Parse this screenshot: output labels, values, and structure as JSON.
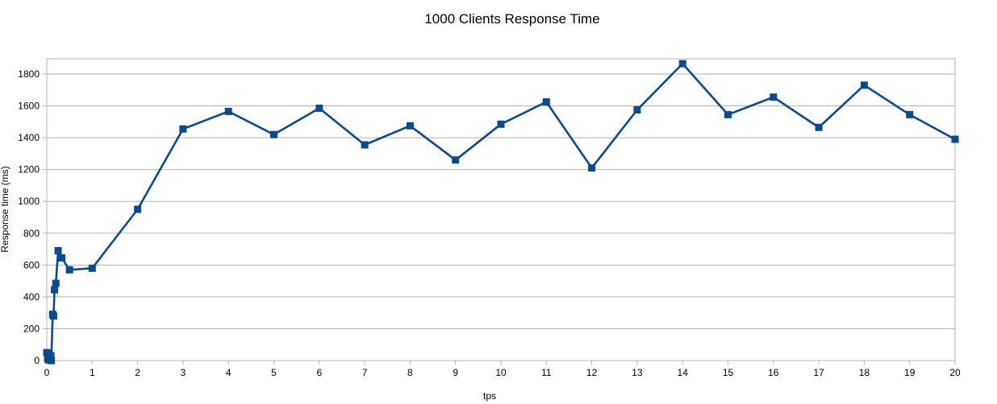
{
  "chart_data": {
    "type": "line",
    "title": "1000 Clients Response Time",
    "xlabel": "tps",
    "ylabel": "Response time (ms)",
    "xlim": [
      0,
      20
    ],
    "ylim": [
      0,
      1900
    ],
    "x_ticks": [
      0,
      1,
      2,
      3,
      4,
      5,
      6,
      7,
      8,
      9,
      10,
      11,
      12,
      13,
      14,
      15,
      16,
      17,
      18,
      19,
      20
    ],
    "y_ticks": [
      0,
      200,
      400,
      600,
      800,
      1000,
      1200,
      1400,
      1600,
      1800
    ],
    "x_tick_labels": [
      "0",
      "1",
      "2",
      "3",
      "4",
      "5",
      "6",
      "7",
      "8",
      "9",
      "10",
      "11",
      "12",
      "13",
      "14",
      "15",
      "16",
      "17",
      "18",
      "19",
      "20"
    ],
    "y_tick_labels": [
      "0",
      "200",
      "400",
      "600",
      "800",
      "1000",
      "1200",
      "1400",
      "1600",
      "1800"
    ],
    "grid": "horizontal",
    "legend": "none",
    "series": [
      {
        "color": "#0b4a8b",
        "marker": "square",
        "points": [
          [
            0.0,
            50
          ],
          [
            0.02,
            20
          ],
          [
            0.03,
            5
          ],
          [
            0.05,
            40
          ],
          [
            0.07,
            8
          ],
          [
            0.09,
            30
          ],
          [
            0.1,
            0
          ],
          [
            0.13,
            290
          ],
          [
            0.15,
            280
          ],
          [
            0.17,
            445
          ],
          [
            0.2,
            485
          ],
          [
            0.25,
            690
          ],
          [
            0.33,
            645
          ],
          [
            0.5,
            570
          ],
          [
            1,
            580
          ],
          [
            2,
            950
          ],
          [
            3,
            1455
          ],
          [
            4,
            1565
          ],
          [
            5,
            1420
          ],
          [
            6,
            1585
          ],
          [
            7,
            1355
          ],
          [
            8,
            1475
          ],
          [
            9,
            1260
          ],
          [
            10,
            1485
          ],
          [
            11,
            1625
          ],
          [
            12,
            1210
          ],
          [
            13,
            1575
          ],
          [
            14,
            1865
          ],
          [
            15,
            1545
          ],
          [
            16,
            1655
          ],
          [
            17,
            1465
          ],
          [
            18,
            1730
          ],
          [
            19,
            1545
          ],
          [
            20,
            1390
          ]
        ]
      }
    ]
  }
}
